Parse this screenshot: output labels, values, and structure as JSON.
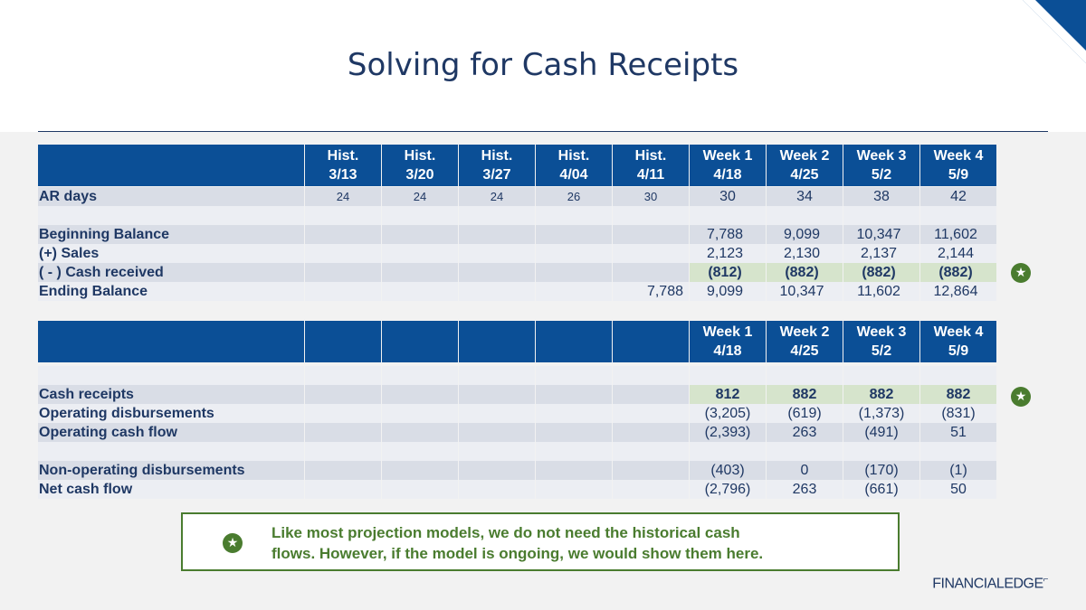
{
  "title": "Solving for Cash Receipts",
  "table1": {
    "headers": [
      [
        "Hist.",
        "3/13"
      ],
      [
        "Hist.",
        "3/20"
      ],
      [
        "Hist.",
        "3/27"
      ],
      [
        "Hist.",
        "4/04"
      ],
      [
        "Hist.",
        "4/11"
      ],
      [
        "Week 1",
        "4/18"
      ],
      [
        "Week 2",
        "4/25"
      ],
      [
        "Week 3",
        "5/2"
      ],
      [
        "Week 4",
        "5/9"
      ]
    ],
    "ar_days": {
      "label": "AR days",
      "values": [
        "24",
        "24",
        "24",
        "26",
        "30",
        "30",
        "34",
        "38",
        "42"
      ]
    },
    "beginning_balance": {
      "label": "Beginning Balance",
      "values": [
        "",
        "",
        "",
        "",
        "",
        "7,788",
        "9,099",
        "10,347",
        "11,602"
      ]
    },
    "sales": {
      "label": "(+) Sales",
      "values": [
        "",
        "",
        "",
        "",
        "",
        "2,123",
        "2,130",
        "2,137",
        "2,144"
      ]
    },
    "cash_received": {
      "label": "( - ) Cash received",
      "values": [
        "",
        "",
        "",
        "",
        "",
        "(812)",
        "(882)",
        "(882)",
        "(882)"
      ]
    },
    "ending_balance": {
      "label": "Ending Balance",
      "values": [
        "",
        "",
        "",
        "",
        "7,788",
        "9,099",
        "10,347",
        "11,602",
        "12,864"
      ]
    }
  },
  "table2": {
    "headers": [
      [
        "Week 1",
        "4/18"
      ],
      [
        "Week 2",
        "4/25"
      ],
      [
        "Week 3",
        "5/2"
      ],
      [
        "Week 4",
        "5/9"
      ]
    ],
    "cash_receipts": {
      "label": "Cash receipts",
      "values": [
        "812",
        "882",
        "882",
        "882"
      ]
    },
    "operating_disbursements": {
      "label": "Operating disbursements",
      "values": [
        "(3,205)",
        "(619)",
        "(1,373)",
        "(831)"
      ]
    },
    "operating_cash_flow": {
      "label": "Operating cash flow",
      "values": [
        "(2,393)",
        "263",
        "(491)",
        "51"
      ]
    },
    "non_operating_disbursements": {
      "label": "Non-operating disbursements",
      "values": [
        "(403)",
        "0",
        "(170)",
        "(1)"
      ]
    },
    "net_cash_flow": {
      "label": "Net cash flow",
      "values": [
        "(2,796)",
        "263",
        "(661)",
        "50"
      ]
    }
  },
  "note": {
    "line1": "Like most projection models, we do not need the historical cash",
    "line2": "flows.  However, if the model is ongoing, we would show them here."
  },
  "brand": {
    "part1": "FINANCIAL",
    "part2": "EDGE"
  },
  "icons": {
    "star": "star-icon"
  },
  "colors": {
    "header": "#0b4f96",
    "accent_green": "#4a7c2f",
    "highlight": "#d6e4cc",
    "text": "#1f3864"
  }
}
